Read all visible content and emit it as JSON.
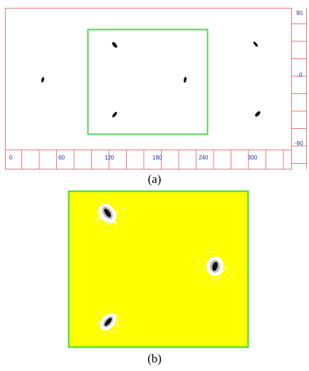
{
  "colors": {
    "ruler_line": "#e87878",
    "tick_text": "#1f2fb0",
    "roi_box": "#52d452",
    "background": "#ffffff",
    "panel_b_fill": "#ffff00",
    "blob": "#111111"
  },
  "panel_a": {
    "x_ticks": [
      "0",
      "60",
      "120",
      "180",
      "240",
      "300"
    ],
    "y_ticks": [
      "90",
      "0",
      "-90"
    ],
    "caption": "(a)"
  },
  "panel_b": {
    "caption": "(b)"
  }
}
